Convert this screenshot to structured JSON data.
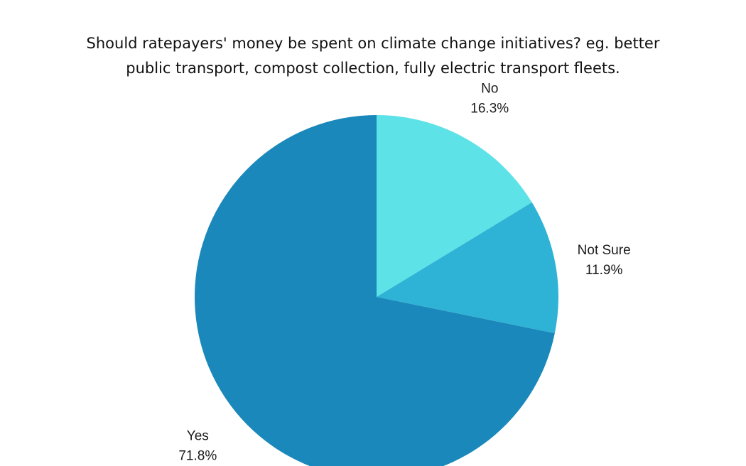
{
  "chart_data": {
    "type": "pie",
    "title_lines": [
      "Should ratepayers' money be spent on climate change initiatives? eg. better",
      "public transport, compost collection, fully electric transport fleets."
    ],
    "slices": [
      {
        "label": "No",
        "value": 16.3,
        "value_label": "16.3%",
        "color": "#5DE2E7"
      },
      {
        "label": "Not Sure",
        "value": 11.9,
        "value_label": "11.9%",
        "color": "#2EB3D6"
      },
      {
        "label": "Yes",
        "value": 71.8,
        "value_label": "71.8%",
        "color": "#1A88BA"
      }
    ],
    "start_angle": "12 o'clock",
    "direction": "clockwise"
  }
}
